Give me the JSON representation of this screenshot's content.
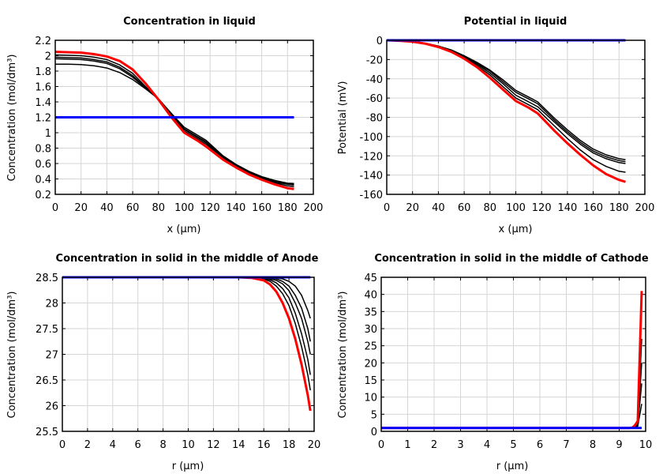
{
  "chart_data": [
    {
      "type": "line",
      "title": "Concentration in liquid",
      "xlabel": "x (µm)",
      "ylabel": "Concentration (mol/dm³)",
      "xlim": [
        0,
        200
      ],
      "ylim": [
        0.2,
        2.2
      ],
      "xticks": [
        0,
        20,
        40,
        60,
        80,
        100,
        120,
        140,
        160,
        180,
        200
      ],
      "yticks": [
        0.2,
        0.4,
        0.6,
        0.8,
        1,
        1.2,
        1.4,
        1.6,
        1.8,
        2,
        2.2
      ],
      "grid": true,
      "x": [
        0,
        10,
        20,
        30,
        40,
        50,
        60,
        70,
        80,
        90,
        100,
        110,
        117,
        130,
        140,
        150,
        160,
        170,
        180,
        185
      ],
      "series": [
        {
          "color": "#000000",
          "values": [
            1.89,
            1.89,
            1.885,
            1.87,
            1.84,
            1.78,
            1.69,
            1.57,
            1.44,
            1.25,
            1.07,
            0.97,
            0.9,
            0.7,
            0.59,
            0.5,
            0.43,
            0.38,
            0.345,
            0.34
          ]
        },
        {
          "color": "#000000",
          "values": [
            1.96,
            1.955,
            1.95,
            1.93,
            1.9,
            1.83,
            1.72,
            1.58,
            1.44,
            1.24,
            1.05,
            0.95,
            0.88,
            0.69,
            0.58,
            0.49,
            0.42,
            0.37,
            0.335,
            0.33
          ]
        },
        {
          "color": "#000000",
          "values": [
            1.98,
            1.975,
            1.97,
            1.95,
            1.92,
            1.85,
            1.74,
            1.59,
            1.43,
            1.23,
            1.04,
            0.94,
            0.87,
            0.68,
            0.57,
            0.48,
            0.41,
            0.36,
            0.33,
            0.32
          ]
        },
        {
          "color": "#000000",
          "values": [
            2.01,
            2.005,
            2.0,
            1.98,
            1.95,
            1.88,
            1.77,
            1.6,
            1.43,
            1.22,
            1.02,
            0.92,
            0.85,
            0.67,
            0.56,
            0.47,
            0.4,
            0.35,
            0.31,
            0.3
          ]
        },
        {
          "color": "#ff0000",
          "values": [
            2.05,
            2.045,
            2.04,
            2.02,
            1.99,
            1.93,
            1.82,
            1.64,
            1.43,
            1.2,
            1.0,
            0.9,
            0.82,
            0.65,
            0.55,
            0.46,
            0.39,
            0.33,
            0.28,
            0.27
          ]
        },
        {
          "color": "#0000ff",
          "values": [
            1.2,
            1.2,
            1.2,
            1.2,
            1.2,
            1.2,
            1.2,
            1.2,
            1.2,
            1.2,
            1.2,
            1.2,
            1.2,
            1.2,
            1.2,
            1.2,
            1.2,
            1.2,
            1.2,
            1.2
          ]
        }
      ]
    },
    {
      "type": "line",
      "title": "Potential in liquid",
      "xlabel": "x (µm)",
      "ylabel": "Potential (mV)",
      "xlim": [
        0,
        200
      ],
      "ylim": [
        -160,
        0
      ],
      "xticks": [
        0,
        20,
        40,
        60,
        80,
        100,
        120,
        140,
        160,
        180,
        200
      ],
      "yticks": [
        -160,
        -140,
        -120,
        -100,
        -80,
        -60,
        -40,
        -20,
        0
      ],
      "grid": true,
      "x": [
        0,
        10,
        20,
        30,
        40,
        50,
        60,
        70,
        80,
        90,
        100,
        110,
        117,
        130,
        140,
        150,
        160,
        170,
        180,
        185
      ],
      "series": [
        {
          "color": "#000000",
          "values": [
            0,
            -0.3,
            -1,
            -3,
            -6,
            -10,
            -16,
            -23,
            -31,
            -41,
            -52,
            -59,
            -64,
            -81,
            -93,
            -104,
            -113,
            -119,
            -123,
            -124
          ]
        },
        {
          "color": "#000000",
          "values": [
            0,
            -0.3,
            -1,
            -3,
            -6,
            -10.5,
            -16.5,
            -24,
            -32,
            -43,
            -54,
            -61,
            -66,
            -83,
            -95,
            -106,
            -115,
            -121,
            -125,
            -126
          ]
        },
        {
          "color": "#000000",
          "values": [
            0,
            -0.3,
            -1.1,
            -3.1,
            -6.3,
            -11,
            -17,
            -25,
            -34,
            -45,
            -57,
            -64,
            -69,
            -85,
            -97,
            -108,
            -117,
            -123,
            -127,
            -128
          ]
        },
        {
          "color": "#000000",
          "values": [
            0,
            -0.4,
            -1.3,
            -3.3,
            -6.7,
            -11.5,
            -18,
            -26.5,
            -36,
            -48,
            -60,
            -67,
            -72,
            -89,
            -102,
            -114,
            -124,
            -131,
            -136,
            -137
          ]
        },
        {
          "color": "#ff0000",
          "values": [
            0,
            -0.5,
            -1.5,
            -3.5,
            -7,
            -12,
            -19,
            -28,
            -39,
            -51,
            -63,
            -70,
            -76,
            -94,
            -107,
            -119,
            -130,
            -139,
            -145,
            -147
          ]
        },
        {
          "color": "#0000ff",
          "values": [
            0,
            0,
            0,
            0,
            0,
            0,
            0,
            0,
            0,
            0,
            0,
            0,
            0,
            0,
            0,
            0,
            0,
            0,
            0,
            0
          ]
        }
      ]
    },
    {
      "type": "line",
      "title": "Concentration in solid in the middle of Anode",
      "xlabel": "r (µm)",
      "ylabel": "Concentration (mol/dm³)",
      "xlim": [
        0,
        20
      ],
      "ylim": [
        25.5,
        28.5
      ],
      "xticks": [
        0,
        2,
        4,
        6,
        8,
        10,
        12,
        14,
        16,
        18,
        20
      ],
      "yticks": [
        25.5,
        26,
        26.5,
        27,
        27.5,
        28,
        28.5
      ],
      "grid": true,
      "x": [
        0,
        14,
        15,
        16,
        16.5,
        17,
        17.5,
        18,
        18.5,
        19,
        19.5,
        19.7
      ],
      "series": [
        {
          "color": "#000000",
          "values": [
            28.5,
            28.5,
            28.5,
            28.5,
            28.5,
            28.49,
            28.47,
            28.42,
            28.33,
            28.15,
            27.85,
            27.7
          ]
        },
        {
          "color": "#000000",
          "values": [
            28.5,
            28.5,
            28.5,
            28.5,
            28.49,
            28.47,
            28.42,
            28.33,
            28.15,
            27.9,
            27.5,
            27.25
          ]
        },
        {
          "color": "#000000",
          "values": [
            28.5,
            28.5,
            28.5,
            28.49,
            28.47,
            28.44,
            28.37,
            28.24,
            28.0,
            27.7,
            27.25,
            27.0
          ]
        },
        {
          "color": "#000000",
          "values": [
            28.5,
            28.5,
            28.5,
            28.48,
            28.45,
            28.39,
            28.28,
            28.1,
            27.8,
            27.4,
            26.9,
            26.6
          ]
        },
        {
          "color": "#000000",
          "values": [
            28.5,
            28.5,
            28.5,
            28.47,
            28.42,
            28.33,
            28.18,
            27.95,
            27.6,
            27.15,
            26.6,
            26.3
          ]
        },
        {
          "color": "#ff0000",
          "values": [
            28.5,
            28.5,
            28.49,
            28.44,
            28.36,
            28.22,
            28.0,
            27.7,
            27.3,
            26.8,
            26.2,
            25.9
          ]
        },
        {
          "color": "#0000ff",
          "values": [
            28.5,
            28.5,
            28.5,
            28.5,
            28.5,
            28.5,
            28.5,
            28.5,
            28.5,
            28.5,
            28.5,
            28.5
          ]
        }
      ]
    },
    {
      "type": "line",
      "title": "Concentration in solid in the middle of Cathode",
      "xlabel": "r (µm)",
      "ylabel": "Concentration (mol/dm³)",
      "xlim": [
        0,
        10
      ],
      "ylim": [
        0,
        45
      ],
      "xticks": [
        0,
        1,
        2,
        3,
        4,
        5,
        6,
        7,
        8,
        9,
        10
      ],
      "yticks": [
        0,
        5,
        10,
        15,
        20,
        25,
        30,
        35,
        40,
        45
      ],
      "grid": true,
      "x": [
        0,
        9.4,
        9.5,
        9.6,
        9.7,
        9.85
      ],
      "series": [
        {
          "color": "#000000",
          "values": [
            1,
            1,
            1,
            1.1,
            1.5,
            8
          ]
        },
        {
          "color": "#000000",
          "values": [
            1,
            1,
            1,
            1.2,
            2,
            14
          ]
        },
        {
          "color": "#000000",
          "values": [
            1,
            1,
            1,
            1.3,
            2.2,
            20
          ]
        },
        {
          "color": "#000000",
          "values": [
            1,
            1,
            1,
            1.4,
            2.5,
            27
          ]
        },
        {
          "color": "#ff0000",
          "values": [
            1,
            1,
            1.1,
            1.8,
            3,
            41
          ]
        },
        {
          "color": "#0000ff",
          "values": [
            1,
            1,
            1,
            1,
            1,
            1
          ]
        }
      ]
    }
  ]
}
